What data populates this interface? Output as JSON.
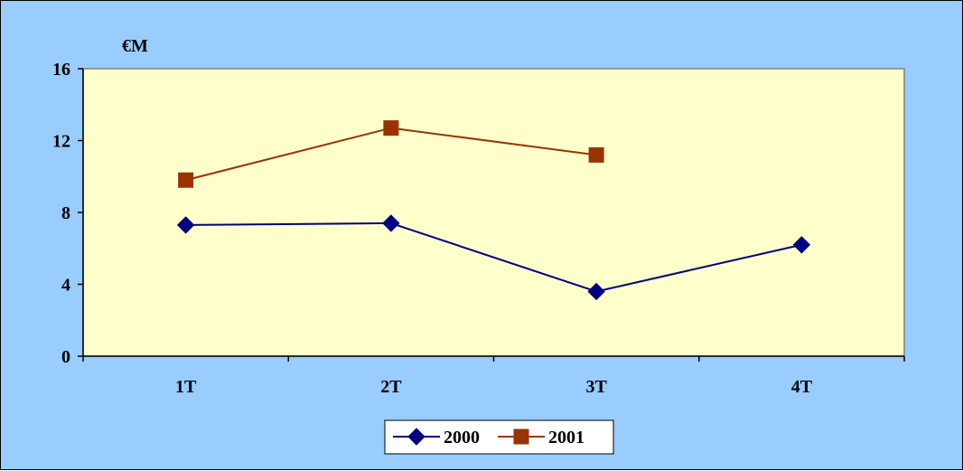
{
  "chart_data": {
    "type": "line",
    "title": "",
    "xlabel": "",
    "ylabel": "€M",
    "categories": [
      "1T",
      "2T",
      "3T",
      "4T"
    ],
    "ylim": [
      0,
      16
    ],
    "yticks": [
      "0",
      "4",
      "8",
      "12",
      "16"
    ],
    "grid": false,
    "legend": "bottom",
    "plot_background": "#ffffcc",
    "chart_background": "#99ccff",
    "series": [
      {
        "name": "2000",
        "values": [
          7.3,
          7.4,
          3.6,
          6.2
        ],
        "color": "#000080",
        "marker": "diamond"
      },
      {
        "name": "2001",
        "values": [
          9.8,
          12.7,
          11.2,
          null
        ],
        "color": "#993300",
        "marker": "square"
      }
    ]
  }
}
